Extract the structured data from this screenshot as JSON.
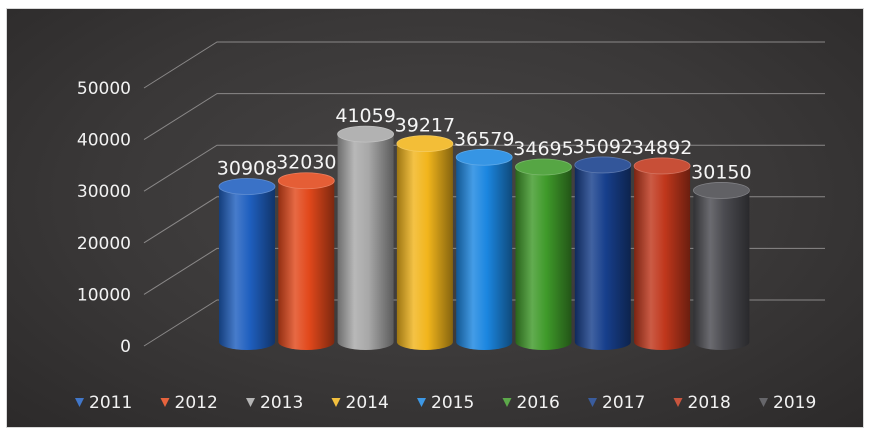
{
  "chart_data": {
    "type": "bar",
    "style": "3d-cylinder",
    "categories": [
      "2011",
      "2012",
      "2013",
      "2014",
      "2015",
      "2016",
      "2017",
      "2018",
      "2019"
    ],
    "values": [
      30908,
      32030,
      41059,
      39217,
      36579,
      34695,
      35092,
      34892,
      30150
    ],
    "data_labels": [
      "30908",
      "32030",
      "41059",
      "39217",
      "36579",
      "34695",
      "35092",
      "34892",
      "30150"
    ],
    "colors": [
      "#1f5fbf",
      "#e2481b",
      "#a8a8a8",
      "#f1b51c",
      "#1b86e0",
      "#3f9a2a",
      "#173f8c",
      "#c0371c",
      "#4b4b50"
    ],
    "y_ticks": [
      "0",
      "10000",
      "20000",
      "30000",
      "40000",
      "50000"
    ],
    "ylim": [
      0,
      50000
    ],
    "grid": true,
    "legend_position": "bottom",
    "legend": [
      "2011",
      "2012",
      "2013",
      "2014",
      "2015",
      "2016",
      "2017",
      "2018",
      "2019"
    ],
    "title": "",
    "xlabel": "",
    "ylabel": ""
  }
}
